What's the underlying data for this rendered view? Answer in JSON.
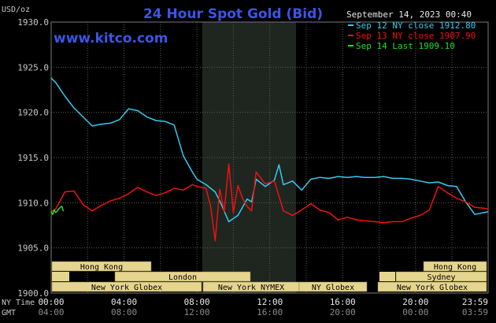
{
  "header": {
    "title": "24 Hour Spot Gold (Bid)",
    "unit": "USD/oz",
    "timestamp": "September 14, 2023 00:40",
    "watermark": "www.kitco.com"
  },
  "colors": {
    "background": "#000000",
    "grid": "#5a5a5a",
    "axis_text": "#c8c8c8",
    "title": "#3b55e6",
    "session_band": "#e6d58e",
    "session_text": "#000000",
    "ny_shade": "#1f2620"
  },
  "axis": {
    "y_ticks": [
      "1930.0",
      "1925.0",
      "1920.0",
      "1915.0",
      "1910.0",
      "1905.0",
      "1900.0"
    ],
    "x_row_label": "NY Time",
    "x_row2_label": "GMT",
    "x_ticks_ny": [
      "00:00",
      "04:00",
      "08:00",
      "12:00",
      "16:00",
      "20:00",
      "23:59"
    ],
    "x_ticks_gmt": [
      "04:00",
      "08:00",
      "12:00",
      "16:00",
      "20:00",
      "00:00",
      "03:59"
    ]
  },
  "sessions": [
    {
      "label": "Hong Kong"
    },
    {
      "label": "London"
    },
    {
      "label": "New York Globex"
    },
    {
      "label": "New York NYMEX"
    },
    {
      "label": "NY Globex"
    },
    {
      "label": "Hong Kong"
    },
    {
      "label": "Sydney"
    },
    {
      "label": "New York Globex"
    }
  ],
  "chart_data": {
    "type": "line",
    "title": "24 Hour Spot Gold (Bid)",
    "ylabel": "USD/oz",
    "xlabel": "NY Time",
    "ylim": [
      1900.0,
      1930.0
    ],
    "xlim": [
      "00:00",
      "23:59"
    ],
    "grid": true,
    "legend_position": "top-right",
    "series": [
      {
        "name": "Sep 12 NY close 1912.80",
        "color": "#33ccee",
        "x": [
          "00:00",
          "00:15",
          "00:45",
          "01:15",
          "01:45",
          "02:15",
          "02:45",
          "03:15",
          "03:45",
          "04:15",
          "04:45",
          "05:15",
          "05:45",
          "06:15",
          "06:45",
          "07:15",
          "07:45",
          "08:00",
          "08:30",
          "09:00",
          "09:15",
          "09:45",
          "10:15",
          "10:45",
          "11:00",
          "11:15",
          "11:45",
          "12:15",
          "12:30",
          "12:45",
          "13:15",
          "13:45",
          "14:15",
          "14:45",
          "15:15",
          "15:45",
          "16:15",
          "16:45",
          "17:15",
          "17:45",
          "18:15",
          "18:45",
          "19:15",
          "19:45",
          "20:15",
          "20:45",
          "21:15",
          "21:45",
          "22:15",
          "22:45",
          "23:15",
          "23:45",
          "23:59"
        ],
        "values": [
          1923.8,
          1923.3,
          1921.8,
          1920.5,
          1919.5,
          1918.5,
          1918.7,
          1918.8,
          1919.2,
          1920.4,
          1920.2,
          1919.5,
          1919.1,
          1919.0,
          1918.6,
          1915.2,
          1913.4,
          1912.6,
          1912.0,
          1911.2,
          1910.2,
          1907.9,
          1908.6,
          1910.4,
          1910.1,
          1912.6,
          1911.8,
          1912.5,
          1914.2,
          1912.0,
          1912.4,
          1911.4,
          1912.6,
          1912.8,
          1912.7,
          1912.9,
          1912.8,
          1912.9,
          1912.8,
          1912.8,
          1912.9,
          1912.7,
          1912.7,
          1912.6,
          1912.4,
          1912.2,
          1912.3,
          1911.9,
          1911.8,
          1910.1,
          1908.7,
          1908.9,
          1909.0
        ]
      },
      {
        "name": "Sep 13 NY close 1907.90",
        "color": "#ee1111",
        "x": [
          "00:00",
          "00:15",
          "00:45",
          "01:15",
          "01:45",
          "02:15",
          "02:45",
          "03:15",
          "03:45",
          "04:15",
          "04:45",
          "05:15",
          "05:45",
          "06:15",
          "06:45",
          "07:15",
          "07:45",
          "08:00",
          "08:30",
          "08:45",
          "09:00",
          "09:15",
          "09:30",
          "09:45",
          "10:00",
          "10:15",
          "10:30",
          "10:45",
          "11:00",
          "11:15",
          "11:45",
          "12:15",
          "12:45",
          "13:15",
          "13:45",
          "14:15",
          "14:45",
          "15:15",
          "15:45",
          "16:15",
          "16:45",
          "17:15",
          "17:45",
          "18:15",
          "18:45",
          "19:15",
          "19:45",
          "20:15",
          "20:45",
          "21:15",
          "21:45",
          "22:15",
          "22:45",
          "23:15",
          "23:45",
          "23:59"
        ],
        "values": [
          1909.0,
          1909.3,
          1911.2,
          1911.3,
          1909.8,
          1909.1,
          1909.7,
          1910.2,
          1910.5,
          1911.0,
          1911.7,
          1911.2,
          1910.8,
          1911.1,
          1911.6,
          1911.4,
          1912.0,
          1911.8,
          1911.6,
          1909.6,
          1905.8,
          1911.5,
          1909.0,
          1914.3,
          1908.9,
          1911.9,
          1910.5,
          1909.6,
          1909.1,
          1913.4,
          1912.1,
          1912.4,
          1909.1,
          1908.6,
          1909.2,
          1909.9,
          1909.2,
          1908.9,
          1908.1,
          1908.4,
          1908.1,
          1908.0,
          1907.9,
          1907.8,
          1907.9,
          1907.9,
          1908.3,
          1908.6,
          1909.2,
          1911.8,
          1911.1,
          1910.5,
          1910.1,
          1909.5,
          1909.4,
          1909.3
        ]
      },
      {
        "name": "Sep 14 Last 1909.10",
        "color": "#22dd22",
        "x": [
          "00:00",
          "00:05",
          "00:10",
          "00:15",
          "00:20",
          "00:25",
          "00:30",
          "00:35",
          "00:40"
        ],
        "values": [
          1909.0,
          1908.7,
          1909.2,
          1908.9,
          1909.1,
          1909.3,
          1909.5,
          1909.6,
          1909.1
        ]
      }
    ]
  }
}
